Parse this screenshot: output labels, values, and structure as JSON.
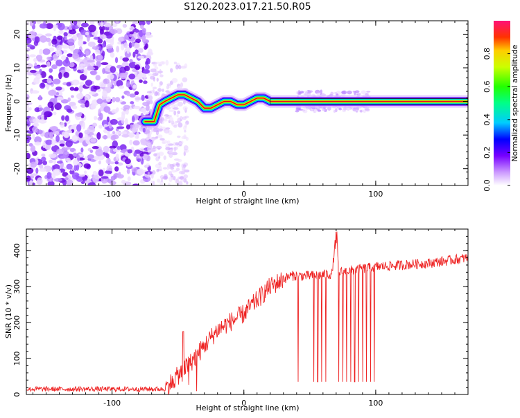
{
  "title": "S120.2023.017.21.50.R05",
  "chart_data": [
    {
      "type": "heatmap",
      "xlabel": "Height of straight line (km)",
      "ylabel": "Frequency (Hz)",
      "xlim": [
        -165,
        170
      ],
      "ylim": [
        -25,
        24
      ],
      "xticks": [
        -100,
        0,
        100
      ],
      "yticks": [
        -20,
        -10,
        0,
        10,
        20
      ],
      "colorbar": {
        "label": "Normalized spectral amplitude",
        "range": [
          0,
          1
        ],
        "ticks": [
          0.0,
          0.2,
          0.4,
          0.6,
          0.8
        ]
      },
      "noise_region_x": [
        -165,
        -73
      ],
      "signal_track": [
        {
          "x": -75,
          "y": -6
        },
        {
          "x": -68,
          "y": -6
        },
        {
          "x": -64,
          "y": -1
        },
        {
          "x": -60,
          "y": 0
        },
        {
          "x": -55,
          "y": 1
        },
        {
          "x": -50,
          "y": 2
        },
        {
          "x": -45,
          "y": 2
        },
        {
          "x": -40,
          "y": 1
        },
        {
          "x": -35,
          "y": 0
        },
        {
          "x": -30,
          "y": -2
        },
        {
          "x": -25,
          "y": -2
        },
        {
          "x": -20,
          "y": -1
        },
        {
          "x": -15,
          "y": 0
        },
        {
          "x": -10,
          "y": 0
        },
        {
          "x": -5,
          "y": -1
        },
        {
          "x": 0,
          "y": -1
        },
        {
          "x": 5,
          "y": 0
        },
        {
          "x": 10,
          "y": 1
        },
        {
          "x": 15,
          "y": 1
        },
        {
          "x": 20,
          "y": 0
        },
        {
          "x": 170,
          "y": 0
        }
      ]
    },
    {
      "type": "line",
      "xlabel": "Height of straight line (km)",
      "ylabel": "SNR (10 * v/v)",
      "xlim": [
        -165,
        170
      ],
      "ylim": [
        0,
        460
      ],
      "xticks": [
        -100,
        0,
        100
      ],
      "yticks": [
        0,
        100,
        200,
        300,
        400
      ],
      "color": "#ee2222",
      "baseline_end": -60,
      "baseline_level": 15,
      "spike": {
        "x": -46,
        "y": 175
      },
      "ramp": [
        {
          "x": -60,
          "y": 15
        },
        {
          "x": -40,
          "y": 90
        },
        {
          "x": -20,
          "y": 180
        },
        {
          "x": 0,
          "y": 225
        },
        {
          "x": 20,
          "y": 300
        },
        {
          "x": 35,
          "y": 330
        },
        {
          "x": 50,
          "y": 330
        },
        {
          "x": 67,
          "y": 335
        },
        {
          "x": 70,
          "y": 460
        },
        {
          "x": 72,
          "y": 340
        },
        {
          "x": 100,
          "y": 355
        },
        {
          "x": 140,
          "y": 365
        },
        {
          "x": 170,
          "y": 380
        }
      ],
      "dropouts": [
        41,
        53,
        56,
        59,
        62,
        72,
        75,
        78,
        81,
        84,
        87,
        90,
        93,
        96,
        99
      ],
      "dropout_level": 35
    }
  ]
}
